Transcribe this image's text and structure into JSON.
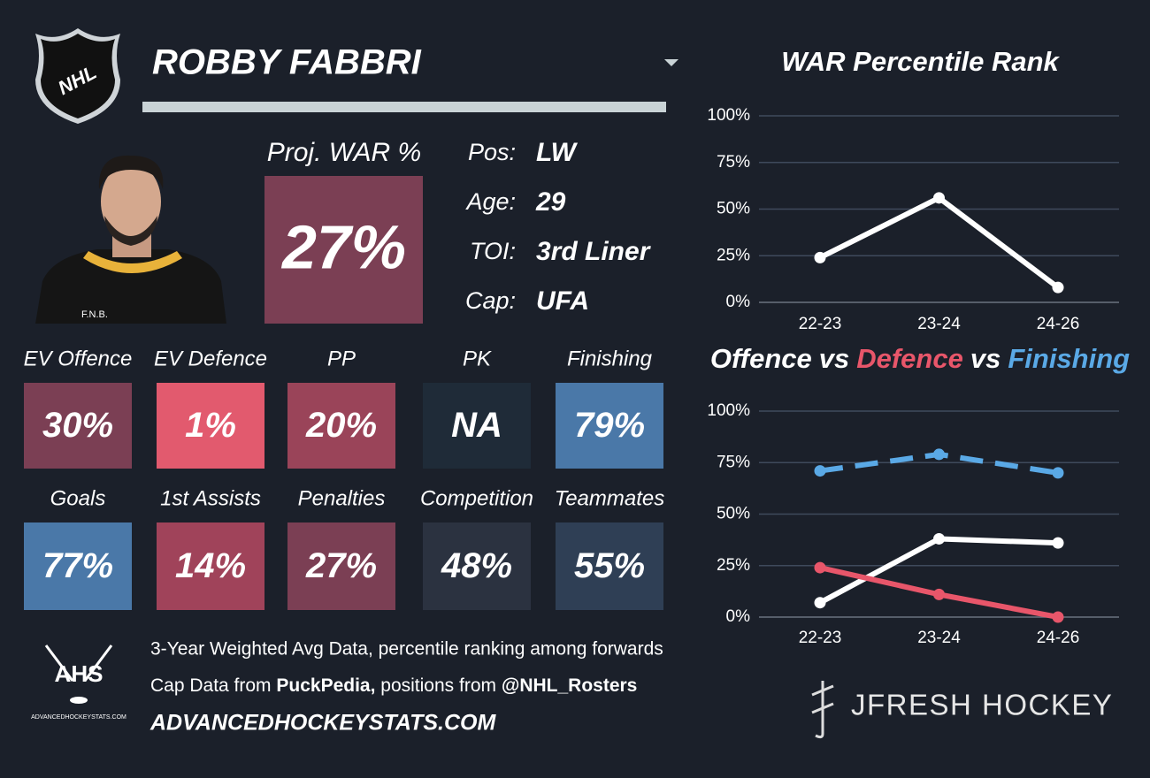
{
  "header": {
    "logo": "NHL",
    "name": "ROBBY FABBRI"
  },
  "projection": {
    "label": "Proj. WAR %",
    "value": "27%",
    "color": "#7b3f54"
  },
  "info": [
    {
      "label": "Pos:",
      "value": "LW"
    },
    {
      "label": "Age:",
      "value": "29"
    },
    {
      "label": "TOI:",
      "value": "3rd Liner"
    },
    {
      "label": "Cap:",
      "value": "UFA"
    }
  ],
  "tiles": [
    {
      "label": "EV Offence",
      "value": "30%",
      "color": "#7b3f54"
    },
    {
      "label": "EV Defence",
      "value": "1%",
      "color": "#e25a6e"
    },
    {
      "label": "PP",
      "value": "20%",
      "color": "#9a4459"
    },
    {
      "label": "PK",
      "value": "NA",
      "color": "#1f2b38"
    },
    {
      "label": "Finishing",
      "value": "79%",
      "color": "#4a78a8"
    },
    {
      "label": "Goals",
      "value": "77%",
      "color": "#4a78a8"
    },
    {
      "label": "1st Assists",
      "value": "14%",
      "color": "#a0435a"
    },
    {
      "label": "Penalties",
      "value": "27%",
      "color": "#7b3f54"
    },
    {
      "label": "Competition",
      "value": "48%",
      "color": "#2b3240"
    },
    {
      "label": "Teammates",
      "value": "55%",
      "color": "#2f3f55"
    }
  ],
  "footer": {
    "logo": "AHS",
    "logo_caption": "ADVANCEDHOCKEYSTATS.COM",
    "note": "3-Year Weighted Avg Data, percentile ranking among forwards",
    "credit": [
      "Cap Data from ",
      "PuckPedia,",
      " positions from ",
      "@NHL_Rosters"
    ],
    "website": "ADVANCEDHOCKEYSTATS.COM",
    "brand": "JFRESH HOCKEY"
  },
  "chart_data": [
    {
      "type": "line",
      "title": "WAR Percentile Rank",
      "categories": [
        "22-23",
        "23-24",
        "24-26"
      ],
      "series": [
        {
          "color": "#ffffff",
          "values": [
            24,
            56,
            8
          ]
        }
      ],
      "ylim": [
        0,
        100
      ],
      "yticks": [
        {
          "value": 0,
          "label": "0%"
        },
        {
          "value": 25,
          "label": "25%"
        },
        {
          "value": 50,
          "label": "50%"
        },
        {
          "value": 75,
          "label": "75%"
        },
        {
          "value": 100,
          "label": "100%"
        }
      ],
      "grid": true
    },
    {
      "type": "line",
      "title_separator": "vs",
      "categories": [
        "22-23",
        "23-24",
        "24-26"
      ],
      "series": [
        {
          "name": "Offence",
          "color": "#ffffff",
          "values": [
            7,
            38,
            36
          ]
        },
        {
          "name": "Defence",
          "color": "#e8566a",
          "values": [
            24,
            11,
            0
          ]
        },
        {
          "name": "Finishing",
          "color": "#5aa9e6",
          "values": [
            71,
            79,
            70
          ],
          "dashed": true
        }
      ],
      "ylim": [
        0,
        100
      ],
      "yticks": [
        {
          "value": 0,
          "label": "0%"
        },
        {
          "value": 25,
          "label": "25%"
        },
        {
          "value": 50,
          "label": "50%"
        },
        {
          "value": 75,
          "label": "75%"
        },
        {
          "value": 100,
          "label": "100%"
        }
      ],
      "grid": true
    }
  ]
}
